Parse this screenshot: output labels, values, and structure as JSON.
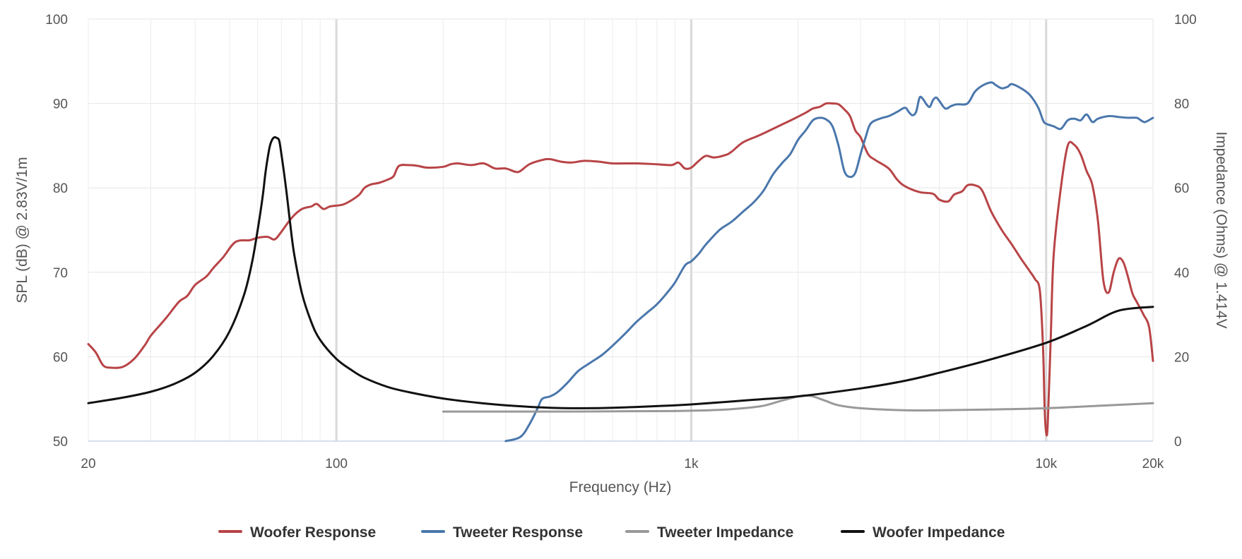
{
  "chart_data": {
    "type": "line",
    "title": "",
    "xlabel": "Frequency (Hz)",
    "ylabel_left": "SPL (dB) @ 2.83V/1m",
    "ylabel_right": "Impedance (Ohms) @ 1.414V",
    "x_scale": "log",
    "xlim": [
      20,
      20000
    ],
    "ylim_left": [
      50,
      100
    ],
    "ylim_right": [
      0,
      100
    ],
    "grid": true,
    "legend_position": "bottom",
    "x_ticks": [
      {
        "value": 20,
        "label": "20"
      },
      {
        "value": 100,
        "label": "100"
      },
      {
        "value": 1000,
        "label": "1k"
      },
      {
        "value": 10000,
        "label": "10k"
      },
      {
        "value": 20000,
        "label": "20k"
      }
    ],
    "y_left_ticks": [
      {
        "value": 50,
        "label": "50"
      },
      {
        "value": 60,
        "label": "60"
      },
      {
        "value": 70,
        "label": "70"
      },
      {
        "value": 80,
        "label": "80"
      },
      {
        "value": 90,
        "label": "90"
      },
      {
        "value": 100,
        "label": "100"
      }
    ],
    "y_right_ticks": [
      {
        "value": 0,
        "label": "0"
      },
      {
        "value": 20,
        "label": "20"
      },
      {
        "value": 40,
        "label": "40"
      },
      {
        "value": 60,
        "label": "60"
      },
      {
        "value": 80,
        "label": "80"
      },
      {
        "value": 100,
        "label": "100"
      }
    ],
    "series": [
      {
        "name": "Woofer Response",
        "axis": "left",
        "color": "#b84447",
        "points": [
          [
            20,
            61.5
          ],
          [
            21,
            60.5
          ],
          [
            22,
            59
          ],
          [
            23,
            58.7
          ],
          [
            25,
            58.8
          ],
          [
            27,
            59.8
          ],
          [
            29,
            61.5
          ],
          [
            30,
            62.5
          ],
          [
            33,
            64.5
          ],
          [
            36,
            66.5
          ],
          [
            38,
            67.2
          ],
          [
            40,
            68.5
          ],
          [
            43,
            69.5
          ],
          [
            45,
            70.5
          ],
          [
            48,
            71.8
          ],
          [
            52,
            73.6
          ],
          [
            57,
            73.8
          ],
          [
            60,
            74.1
          ],
          [
            64,
            74.2
          ],
          [
            67,
            73.9
          ],
          [
            70,
            74.8
          ],
          [
            75,
            76.5
          ],
          [
            80,
            77.5
          ],
          [
            85,
            77.8
          ],
          [
            88,
            78.1
          ],
          [
            92,
            77.5
          ],
          [
            96,
            77.8
          ],
          [
            104,
            78
          ],
          [
            110,
            78.5
          ],
          [
            116,
            79.2
          ],
          [
            120,
            80.0
          ],
          [
            125,
            80.4
          ],
          [
            132,
            80.6
          ],
          [
            140,
            81.0
          ],
          [
            145,
            81.4
          ],
          [
            150,
            82.6
          ],
          [
            160,
            82.7
          ],
          [
            170,
            82.6
          ],
          [
            180,
            82.4
          ],
          [
            200,
            82.5
          ],
          [
            210,
            82.8
          ],
          [
            220,
            82.9
          ],
          [
            240,
            82.7
          ],
          [
            260,
            82.9
          ],
          [
            280,
            82.3
          ],
          [
            300,
            82.3
          ],
          [
            320,
            81.9
          ],
          [
            330,
            82.0
          ],
          [
            350,
            82.8
          ],
          [
            380,
            83.3
          ],
          [
            400,
            83.4
          ],
          [
            430,
            83.1
          ],
          [
            460,
            83.0
          ],
          [
            500,
            83.2
          ],
          [
            550,
            83.1
          ],
          [
            600,
            82.9
          ],
          [
            700,
            82.9
          ],
          [
            800,
            82.8
          ],
          [
            880,
            82.7
          ],
          [
            920,
            83.0
          ],
          [
            960,
            82.3
          ],
          [
            1000,
            82.4
          ],
          [
            1050,
            83.2
          ],
          [
            1100,
            83.8
          ],
          [
            1160,
            83.6
          ],
          [
            1250,
            83.9
          ],
          [
            1300,
            84.3
          ],
          [
            1400,
            85.4
          ],
          [
            1550,
            86.2
          ],
          [
            1700,
            87.0
          ],
          [
            1800,
            87.5
          ],
          [
            1950,
            88.2
          ],
          [
            2100,
            88.9
          ],
          [
            2200,
            89.4
          ],
          [
            2300,
            89.6
          ],
          [
            2400,
            90.0
          ],
          [
            2500,
            90.0
          ],
          [
            2600,
            89.9
          ],
          [
            2700,
            89.3
          ],
          [
            2800,
            88.5
          ],
          [
            2900,
            86.8
          ],
          [
            3000,
            86.0
          ],
          [
            3150,
            84.0
          ],
          [
            3300,
            83.3
          ],
          [
            3600,
            82.3
          ],
          [
            3800,
            81.0
          ],
          [
            4000,
            80.2
          ],
          [
            4400,
            79.5
          ],
          [
            4800,
            79.3
          ],
          [
            5000,
            78.6
          ],
          [
            5300,
            78.4
          ],
          [
            5500,
            79.2
          ],
          [
            5800,
            79.6
          ],
          [
            6000,
            80.3
          ],
          [
            6300,
            80.3
          ],
          [
            6600,
            79.7
          ],
          [
            7000,
            77.2
          ],
          [
            7500,
            75.0
          ],
          [
            8000,
            73.3
          ],
          [
            8500,
            71.6
          ],
          [
            9000,
            70.1
          ],
          [
            9300,
            69.2
          ],
          [
            9600,
            67.8
          ],
          [
            9800,
            61
          ],
          [
            9900,
            54
          ],
          [
            10000,
            51
          ],
          [
            10100,
            52
          ],
          [
            10300,
            62
          ],
          [
            10500,
            72
          ],
          [
            11000,
            80
          ],
          [
            11500,
            85.0
          ],
          [
            12000,
            85.1
          ],
          [
            12500,
            84.0
          ],
          [
            13000,
            82.0
          ],
          [
            13500,
            80.3
          ],
          [
            14000,
            76.0
          ],
          [
            14500,
            69.0
          ],
          [
            15000,
            67.6
          ],
          [
            15500,
            70.0
          ],
          [
            16000,
            71.6
          ],
          [
            16500,
            71.2
          ],
          [
            17000,
            69.5
          ],
          [
            17500,
            67.5
          ],
          [
            18000,
            66.5
          ],
          [
            18800,
            65.0
          ],
          [
            19500,
            63.5
          ],
          [
            20000,
            59.5
          ]
        ]
      },
      {
        "name": "Tweeter Response",
        "axis": "left",
        "color": "#4a77ac",
        "points": [
          [
            300,
            50.0
          ],
          [
            330,
            50.5
          ],
          [
            350,
            52
          ],
          [
            370,
            54
          ],
          [
            380,
            55.0
          ],
          [
            400,
            55.3
          ],
          [
            420,
            55.8
          ],
          [
            450,
            57.0
          ],
          [
            480,
            58.3
          ],
          [
            520,
            59.3
          ],
          [
            560,
            60.2
          ],
          [
            600,
            61.3
          ],
          [
            650,
            62.7
          ],
          [
            700,
            64.1
          ],
          [
            750,
            65.2
          ],
          [
            800,
            66.2
          ],
          [
            860,
            67.7
          ],
          [
            900,
            68.8
          ],
          [
            960,
            70.8
          ],
          [
            1000,
            71.3
          ],
          [
            1050,
            72.2
          ],
          [
            1100,
            73.3
          ],
          [
            1200,
            75.0
          ],
          [
            1300,
            76.0
          ],
          [
            1400,
            77.2
          ],
          [
            1500,
            78.3
          ],
          [
            1600,
            79.7
          ],
          [
            1700,
            81.6
          ],
          [
            1800,
            82.9
          ],
          [
            1900,
            84.0
          ],
          [
            2000,
            85.7
          ],
          [
            2100,
            86.8
          ],
          [
            2200,
            88.0
          ],
          [
            2300,
            88.3
          ],
          [
            2400,
            88.1
          ],
          [
            2500,
            87.3
          ],
          [
            2600,
            85.0
          ],
          [
            2700,
            82.0
          ],
          [
            2800,
            81.3
          ],
          [
            2900,
            81.8
          ],
          [
            3000,
            84.0
          ],
          [
            3100,
            86.0
          ],
          [
            3200,
            87.6
          ],
          [
            3400,
            88.2
          ],
          [
            3600,
            88.5
          ],
          [
            3800,
            89.0
          ],
          [
            4000,
            89.5
          ],
          [
            4100,
            89.0
          ],
          [
            4200,
            88.6
          ],
          [
            4300,
            89.0
          ],
          [
            4400,
            90.7
          ],
          [
            4500,
            90.5
          ],
          [
            4600,
            89.9
          ],
          [
            4700,
            89.6
          ],
          [
            4800,
            90.4
          ],
          [
            4900,
            90.7
          ],
          [
            5000,
            90.3
          ],
          [
            5200,
            89.4
          ],
          [
            5400,
            89.7
          ],
          [
            5600,
            89.9
          ],
          [
            6000,
            90.0
          ],
          [
            6300,
            91.4
          ],
          [
            6600,
            92.1
          ],
          [
            7000,
            92.5
          ],
          [
            7200,
            92.2
          ],
          [
            7500,
            91.8
          ],
          [
            7800,
            92.0
          ],
          [
            8000,
            92.3
          ],
          [
            8500,
            91.8
          ],
          [
            9000,
            91.0
          ],
          [
            9500,
            89.5
          ],
          [
            9800,
            88.0
          ],
          [
            10000,
            87.6
          ],
          [
            10500,
            87.3
          ],
          [
            11000,
            87.0
          ],
          [
            11500,
            88.0
          ],
          [
            12000,
            88.2
          ],
          [
            12500,
            88.0
          ],
          [
            13000,
            88.7
          ],
          [
            13500,
            87.8
          ],
          [
            14000,
            88.2
          ],
          [
            15000,
            88.5
          ],
          [
            16000,
            88.4
          ],
          [
            17000,
            88.3
          ],
          [
            18000,
            88.3
          ],
          [
            18500,
            88.0
          ],
          [
            19000,
            87.8
          ],
          [
            20000,
            88.3
          ]
        ]
      },
      {
        "name": "Tweeter Impedance",
        "axis": "right",
        "color": "#999999",
        "points": [
          [
            200,
            7.0
          ],
          [
            400,
            7.0
          ],
          [
            800,
            7.1
          ],
          [
            1000,
            7.2
          ],
          [
            1200,
            7.4
          ],
          [
            1400,
            7.8
          ],
          [
            1600,
            8.4
          ],
          [
            1800,
            9.6
          ],
          [
            2000,
            10.6
          ],
          [
            2100,
            10.8
          ],
          [
            2200,
            10.6
          ],
          [
            2400,
            9.5
          ],
          [
            2600,
            8.5
          ],
          [
            3000,
            7.8
          ],
          [
            4000,
            7.3
          ],
          [
            5000,
            7.3
          ],
          [
            7000,
            7.5
          ],
          [
            10000,
            7.8
          ],
          [
            15000,
            8.5
          ],
          [
            20000,
            9.0
          ]
        ]
      },
      {
        "name": "Woofer Impedance",
        "axis": "right",
        "color": "#111111",
        "points": [
          [
            20,
            9.0
          ],
          [
            25,
            10.3
          ],
          [
            30,
            11.7
          ],
          [
            35,
            13.6
          ],
          [
            40,
            16.2
          ],
          [
            45,
            20.2
          ],
          [
            50,
            26.0
          ],
          [
            55,
            34.8
          ],
          [
            58,
            42.8
          ],
          [
            60,
            50.0
          ],
          [
            62,
            58.0
          ],
          [
            63,
            63.0
          ],
          [
            64,
            67.0
          ],
          [
            65,
            70.0
          ],
          [
            66,
            71.5
          ],
          [
            67,
            72.0
          ],
          [
            68,
            71.8
          ],
          [
            69,
            71.2
          ],
          [
            70,
            68.0
          ],
          [
            72,
            60.5
          ],
          [
            74,
            52.0
          ],
          [
            76,
            44.5
          ],
          [
            80,
            35.0
          ],
          [
            85,
            28.2
          ],
          [
            90,
            24.0
          ],
          [
            100,
            19.5
          ],
          [
            110,
            16.9
          ],
          [
            120,
            15.0
          ],
          [
            140,
            12.8
          ],
          [
            160,
            11.6
          ],
          [
            200,
            10.1
          ],
          [
            250,
            9.1
          ],
          [
            300,
            8.5
          ],
          [
            400,
            7.9
          ],
          [
            500,
            7.8
          ],
          [
            600,
            7.9
          ],
          [
            800,
            8.3
          ],
          [
            1000,
            8.7
          ],
          [
            1500,
            9.8
          ],
          [
            2000,
            10.6
          ],
          [
            3000,
            12.5
          ],
          [
            4000,
            14.3
          ],
          [
            5000,
            16.2
          ],
          [
            7000,
            19.4
          ],
          [
            10000,
            23.3
          ],
          [
            13000,
            27.3
          ],
          [
            16000,
            30.9
          ],
          [
            20000,
            31.8
          ]
        ]
      }
    ]
  }
}
